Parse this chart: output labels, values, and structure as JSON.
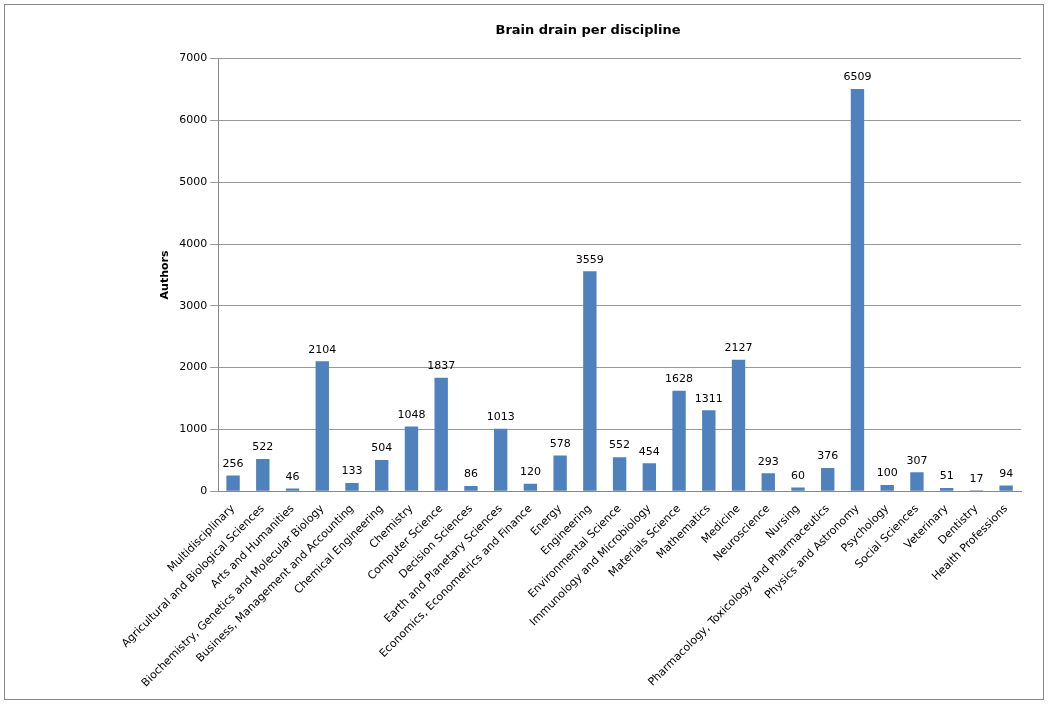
{
  "chart_data": {
    "type": "bar",
    "title": "Brain drain per discipline",
    "ylabel": "Authors",
    "categories": [
      "Multidisciplinary",
      "Agricultural and Biological Sciences",
      "Arts and Humanities",
      "Biochemistry, Genetics and Molecular Biology",
      "Business, Management and Accounting",
      "Chemical Engineering",
      "Chemistry",
      "Computer Science",
      "Decision Sciences",
      "Earth and Planetary Sciences",
      "Economics, Econometrics and Finance",
      "Energy",
      "Engineering",
      "Environmental Science",
      "Immunology and Microbiology",
      "Materials Science",
      "Mathematics",
      "Medicine",
      "Neuroscience",
      "Nursing",
      "Pharmacology, Toxicology and Pharmaceutics",
      "Physics and Astronomy",
      "Psychology",
      "Social Sciences",
      "Veterinary",
      "Dentistry",
      "Health Professions"
    ],
    "values": [
      256,
      522,
      46,
      2104,
      133,
      504,
      1048,
      1837,
      86,
      1013,
      120,
      578,
      3559,
      552,
      454,
      1628,
      1311,
      2127,
      293,
      60,
      376,
      6509,
      100,
      307,
      51,
      17,
      94
    ],
    "color": "#4f81bd",
    "ylim": [
      0,
      7000
    ],
    "yticks": [
      0,
      1000,
      2000,
      3000,
      4000,
      5000,
      6000,
      7000
    ],
    "grid": "y",
    "data_labels": true,
    "legend": false
  }
}
